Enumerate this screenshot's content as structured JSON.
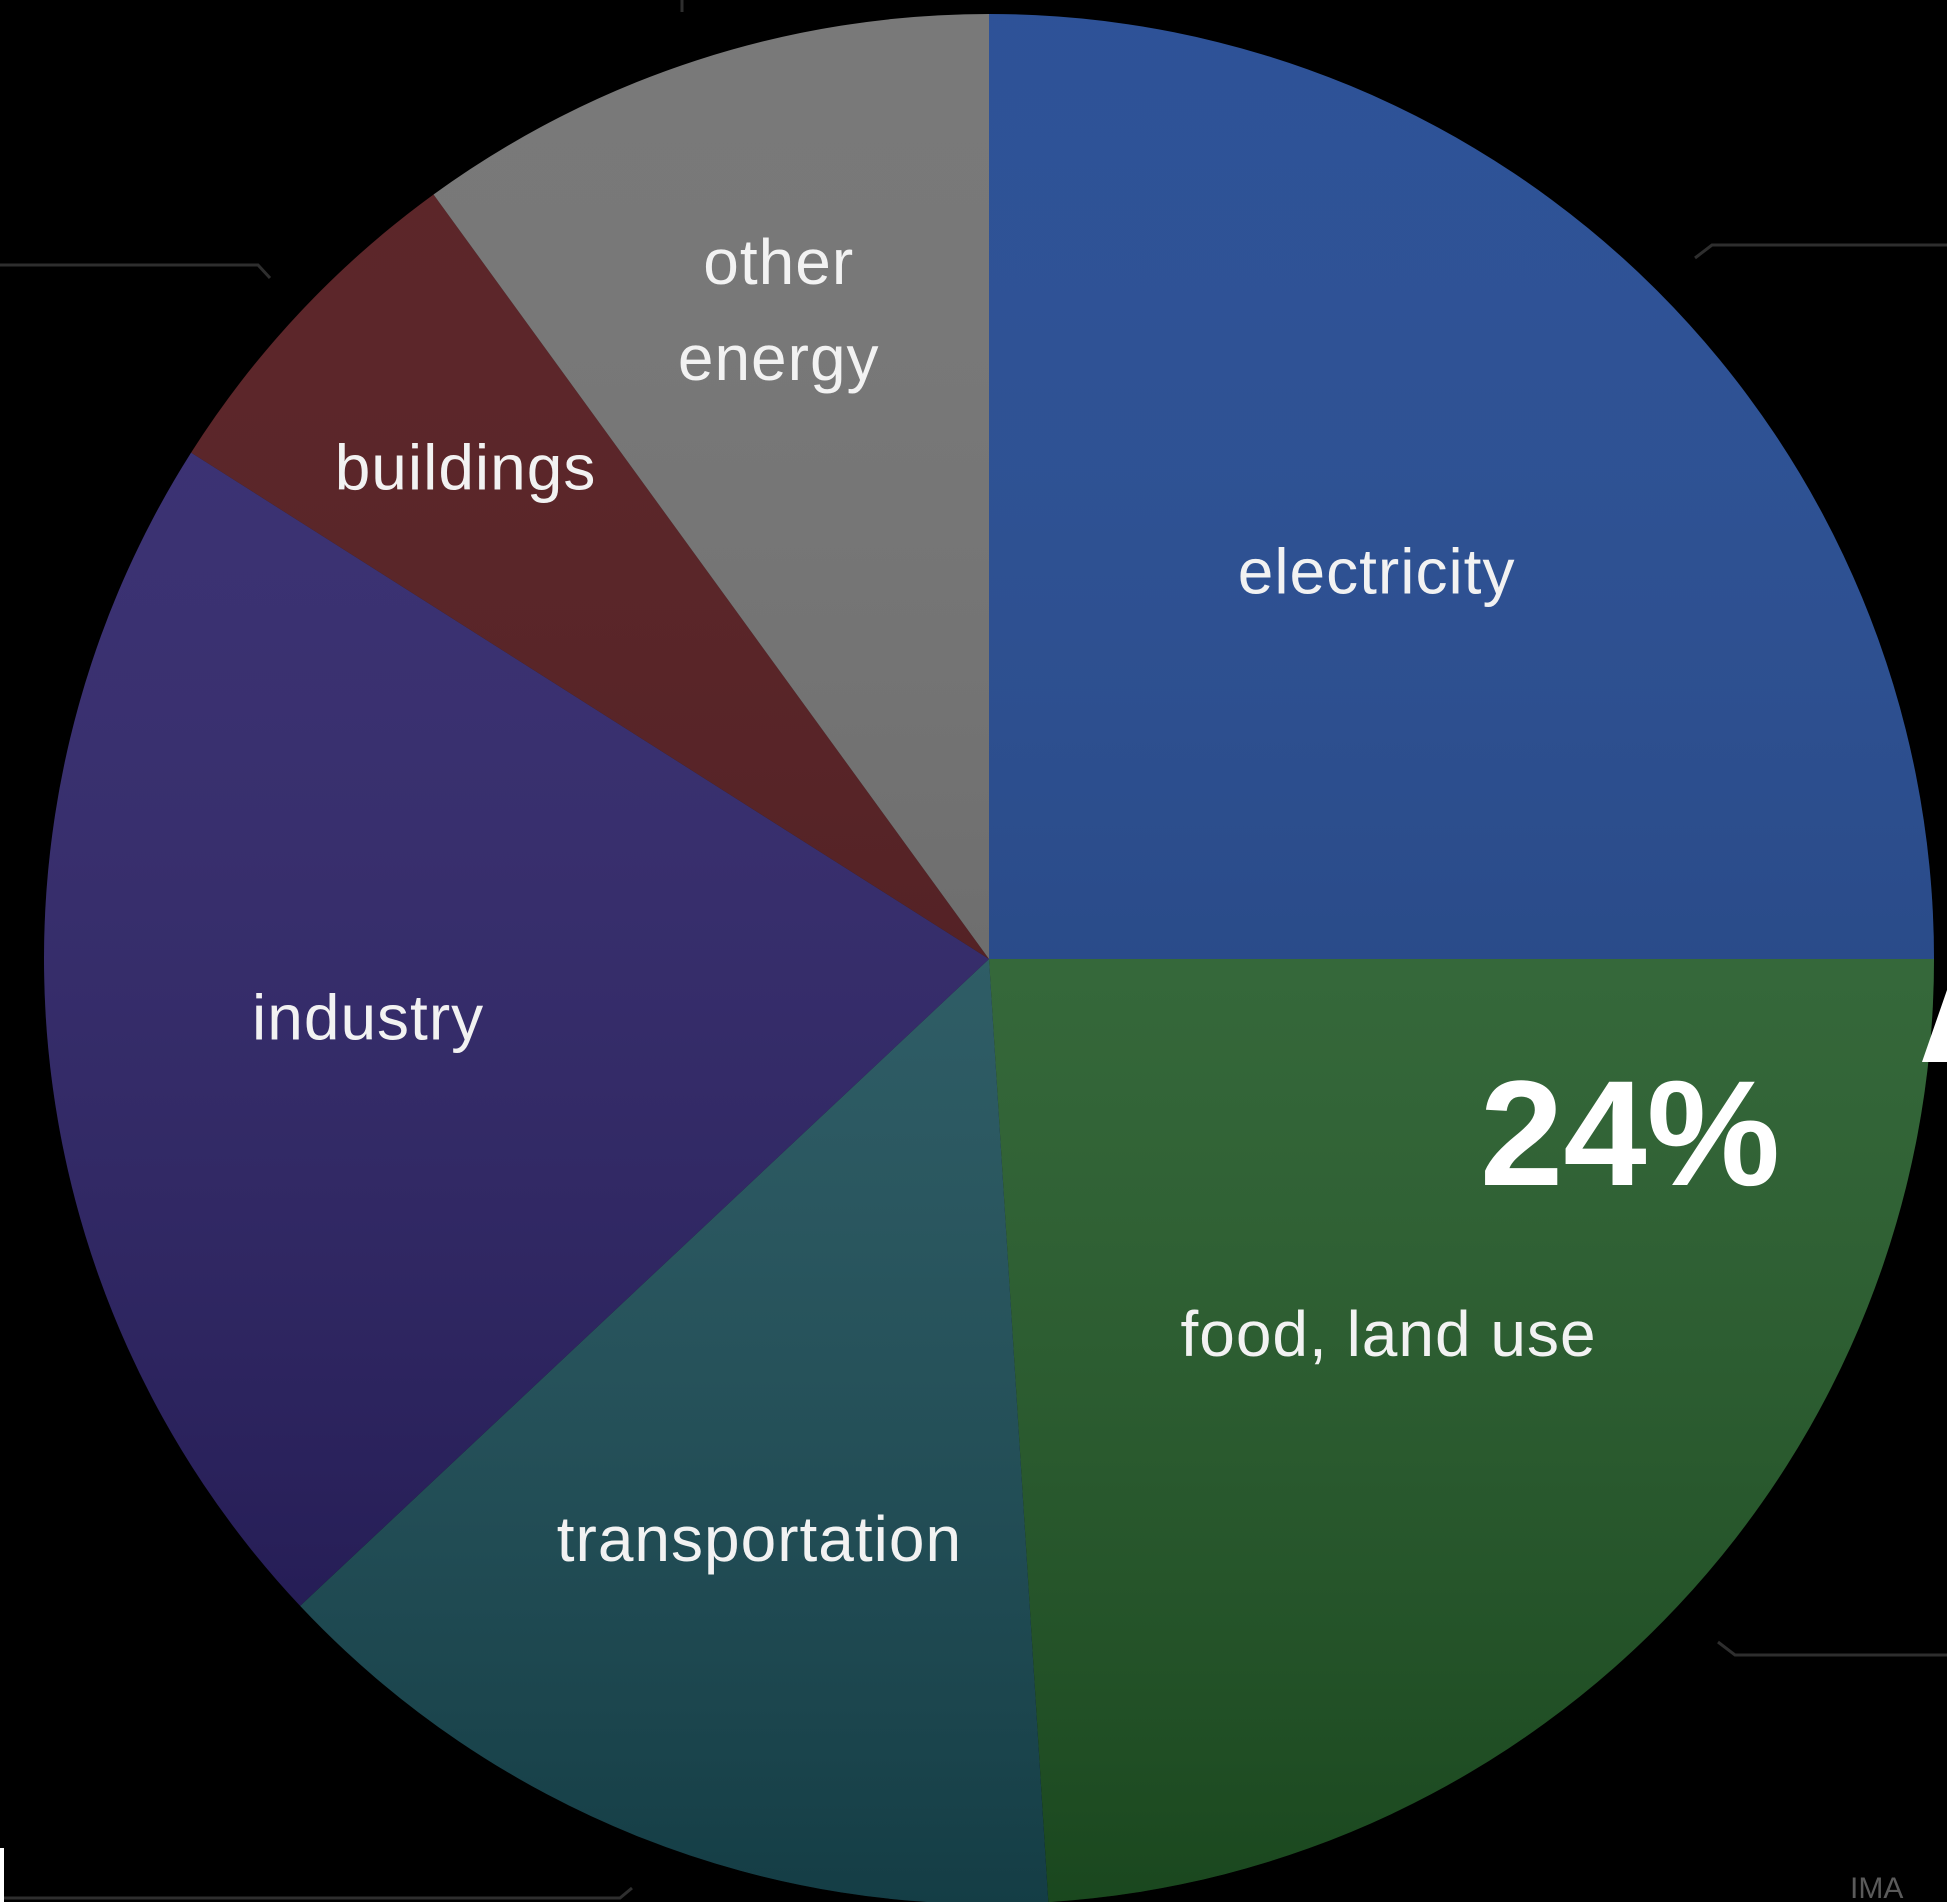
{
  "chart_data": {
    "type": "pie",
    "title": "",
    "start_angle_deg": 0,
    "direction": "clockwise",
    "slices": [
      {
        "label": "electricity",
        "value": 25,
        "color": "#163f8c"
      },
      {
        "label": "food, land use",
        "value": 24,
        "color": "#24632a"
      },
      {
        "label": "transportation",
        "value": 14,
        "color": "#1c5560"
      },
      {
        "label": "industry",
        "value": 21,
        "color": "#251a66"
      },
      {
        "label": "buildings",
        "value": 6,
        "color": "#4a0c10"
      },
      {
        "label": "other energy",
        "value": 10,
        "color": "#6a6a6a"
      }
    ],
    "annotations": [
      {
        "text": "24%",
        "slice": "food, land use"
      }
    ]
  },
  "watermark": "IMA"
}
